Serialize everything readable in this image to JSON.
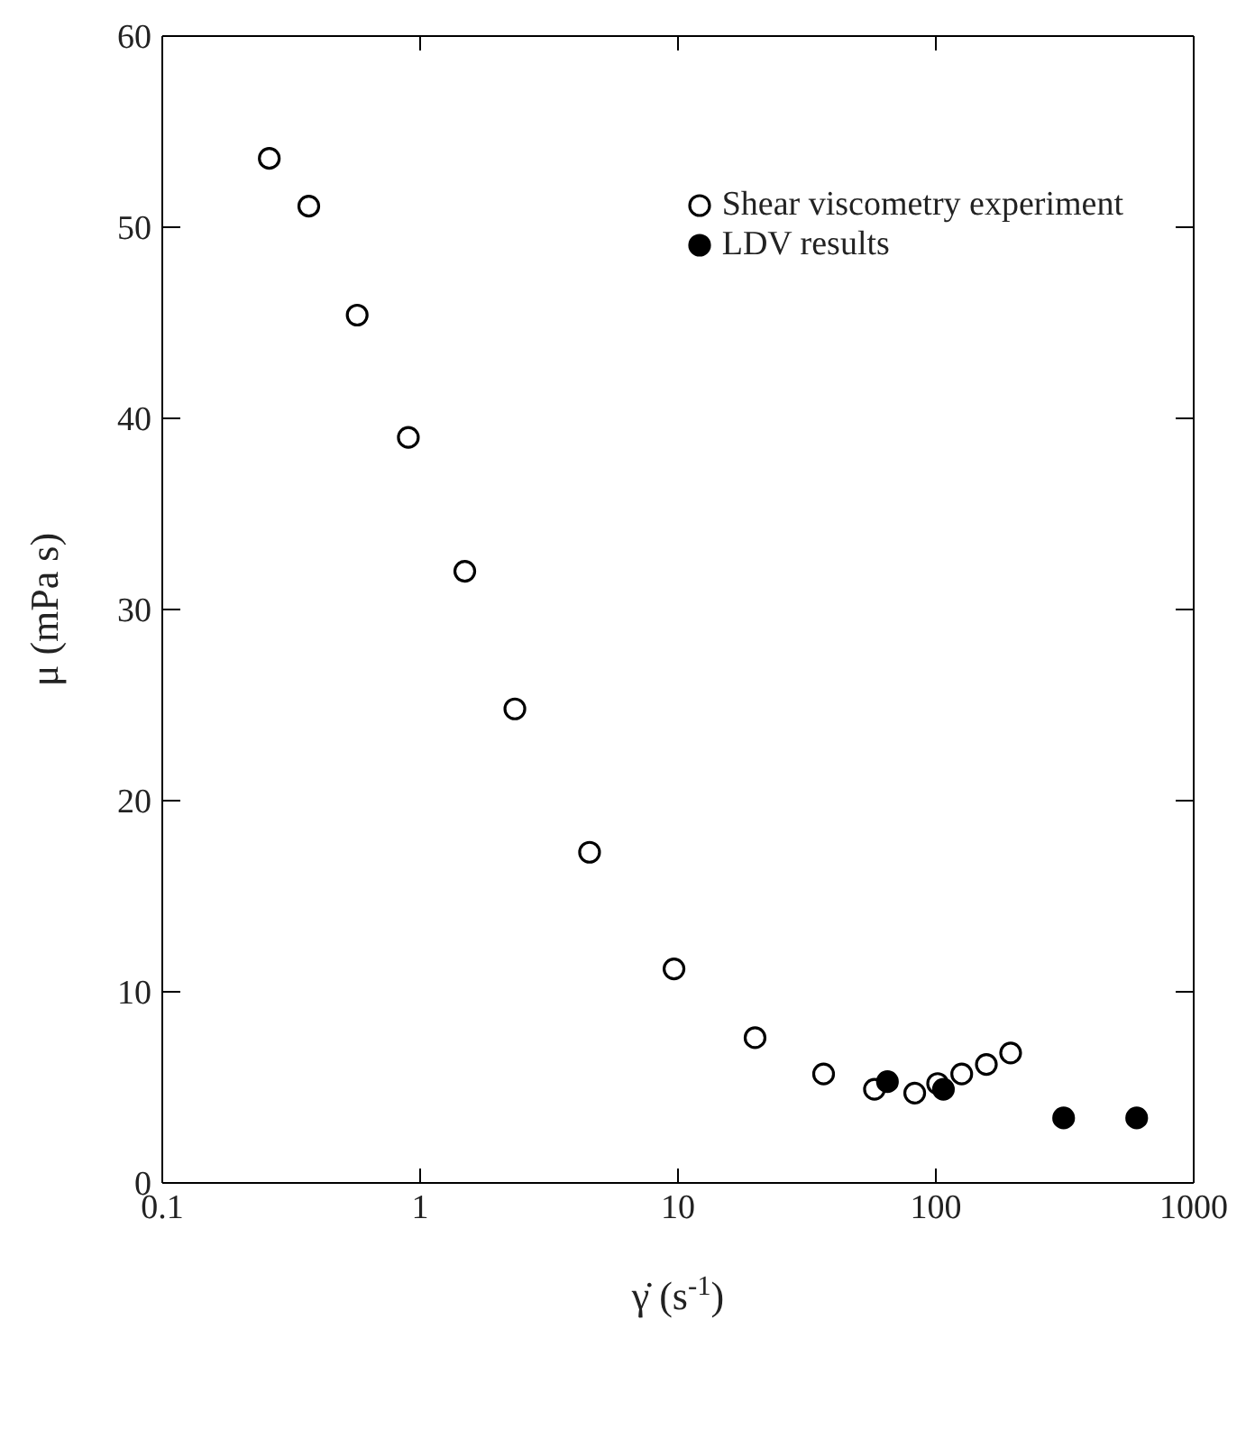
{
  "chart_data": {
    "type": "scatter",
    "xlabel": "γ̇ (s$^{-1}$)",
    "ylabel": "μ (mPa s)",
    "log": "x",
    "xlim": [
      0.1,
      1000
    ],
    "xticks": [
      0.1,
      1,
      10,
      100,
      1000
    ],
    "ylim": [
      0,
      60
    ],
    "yticks": [
      0,
      10,
      20,
      30,
      40,
      50,
      60
    ],
    "legend": "top right",
    "marker": "circle",
    "series": [
      {
        "name": "Shear viscometry experiment",
        "color": "#ffffff",
        "x": [
          0.26,
          0.37,
          0.57,
          0.9,
          1.49,
          2.33,
          4.54,
          9.65,
          19.9,
          36.7,
          57.8,
          82.8,
          101.6,
          126,
          157,
          195
        ],
        "values": [
          53.6,
          51.1,
          45.4,
          39.0,
          32.0,
          24.8,
          17.3,
          11.2,
          7.6,
          5.7,
          4.9,
          4.7,
          5.2,
          5.7,
          6.2,
          6.8
        ]
      },
      {
        "name": "LDV results",
        "color": "#000000",
        "x": [
          64.9,
          107,
          313,
          601
        ],
        "values": [
          5.3,
          4.9,
          3.4,
          3.4
        ]
      }
    ]
  }
}
